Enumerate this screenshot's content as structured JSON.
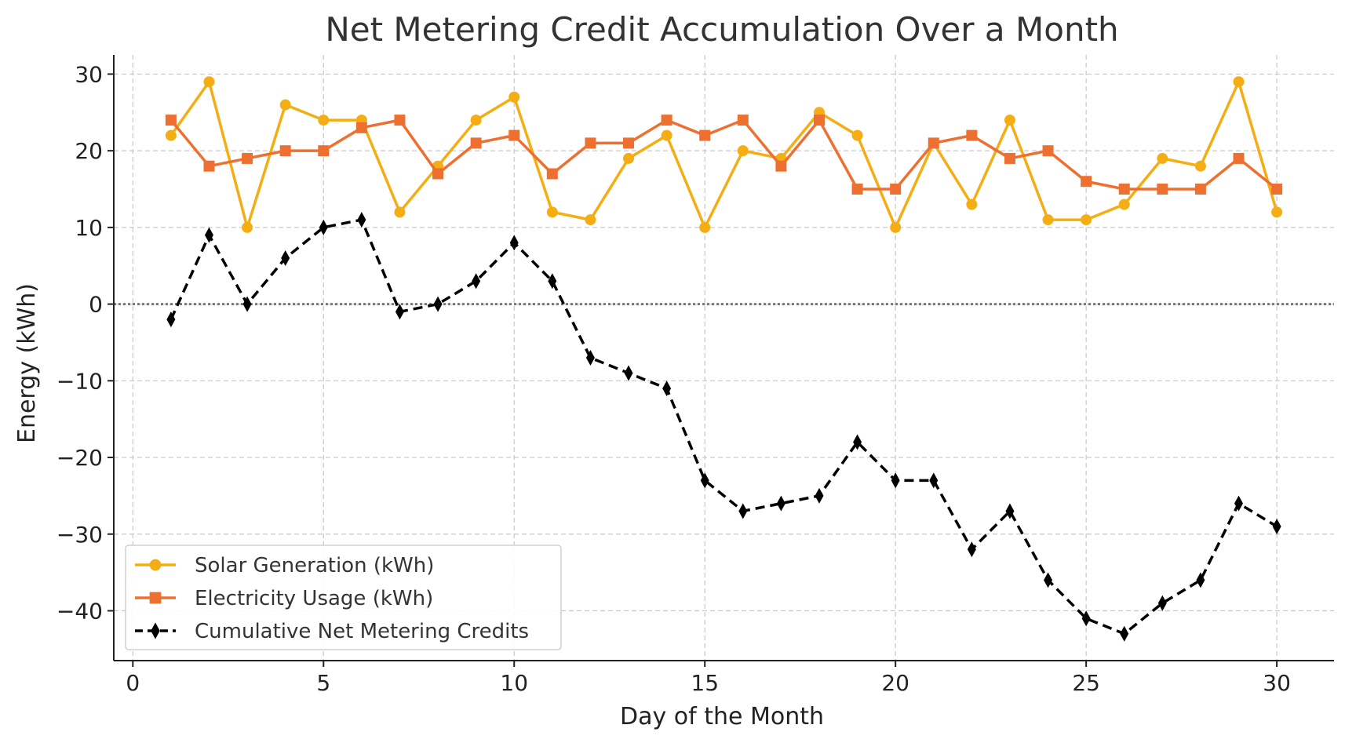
{
  "chart_data": {
    "type": "line",
    "title": "Net Metering Credit Accumulation Over a Month",
    "xlabel": "Day of the Month",
    "ylabel": "Energy (kWh)",
    "xlim": [
      -0.5,
      31.5
    ],
    "ylim": [
      -46.5,
      32.5
    ],
    "xticks": [
      0,
      5,
      10,
      15,
      20,
      25,
      30
    ],
    "yticks": [
      -40,
      -30,
      -20,
      -10,
      0,
      10,
      20,
      30
    ],
    "xtick_labels": [
      "0",
      "5",
      "10",
      "15",
      "20",
      "25",
      "30"
    ],
    "ytick_labels": [
      "−40",
      "−30",
      "−20",
      "−10",
      "0",
      "10",
      "20",
      "30"
    ],
    "grid": true,
    "reference_line_y": 0,
    "legend_position": "lower-left",
    "x": [
      1,
      2,
      3,
      4,
      5,
      6,
      7,
      8,
      9,
      10,
      11,
      12,
      13,
      14,
      15,
      16,
      17,
      18,
      19,
      20,
      21,
      22,
      23,
      24,
      25,
      26,
      27,
      28,
      29,
      30
    ],
    "series": [
      {
        "name": "Solar Generation (kWh)",
        "color": "#f5ad14",
        "marker": "circle",
        "linestyle": "solid",
        "values": [
          22,
          29,
          10,
          26,
          24,
          24,
          12,
          18,
          24,
          27,
          12,
          11,
          19,
          22,
          10,
          20,
          19,
          25,
          22,
          10,
          21,
          13,
          24,
          11,
          11,
          13,
          19,
          18,
          29,
          12
        ]
      },
      {
        "name": "Electricity Usage (kWh)",
        "color": "#ee7030",
        "marker": "square",
        "linestyle": "solid",
        "values": [
          24,
          18,
          19,
          20,
          20,
          23,
          24,
          17,
          21,
          22,
          17,
          21,
          21,
          24,
          22,
          24,
          18,
          24,
          15,
          15,
          21,
          22,
          19,
          20,
          16,
          15,
          15,
          15,
          19,
          15
        ]
      },
      {
        "name": "Cumulative Net Metering Credits",
        "color": "#000000",
        "marker": "diamond",
        "linestyle": "dashed",
        "values": [
          -2,
          9,
          0,
          6,
          10,
          11,
          -1,
          0,
          3,
          8,
          3,
          -7,
          -9,
          -11,
          -23,
          -27,
          -26,
          -25,
          -18,
          -23,
          -23,
          -32,
          -27,
          -36,
          -41,
          -43,
          -39,
          -36,
          -26,
          -29
        ]
      }
    ]
  }
}
